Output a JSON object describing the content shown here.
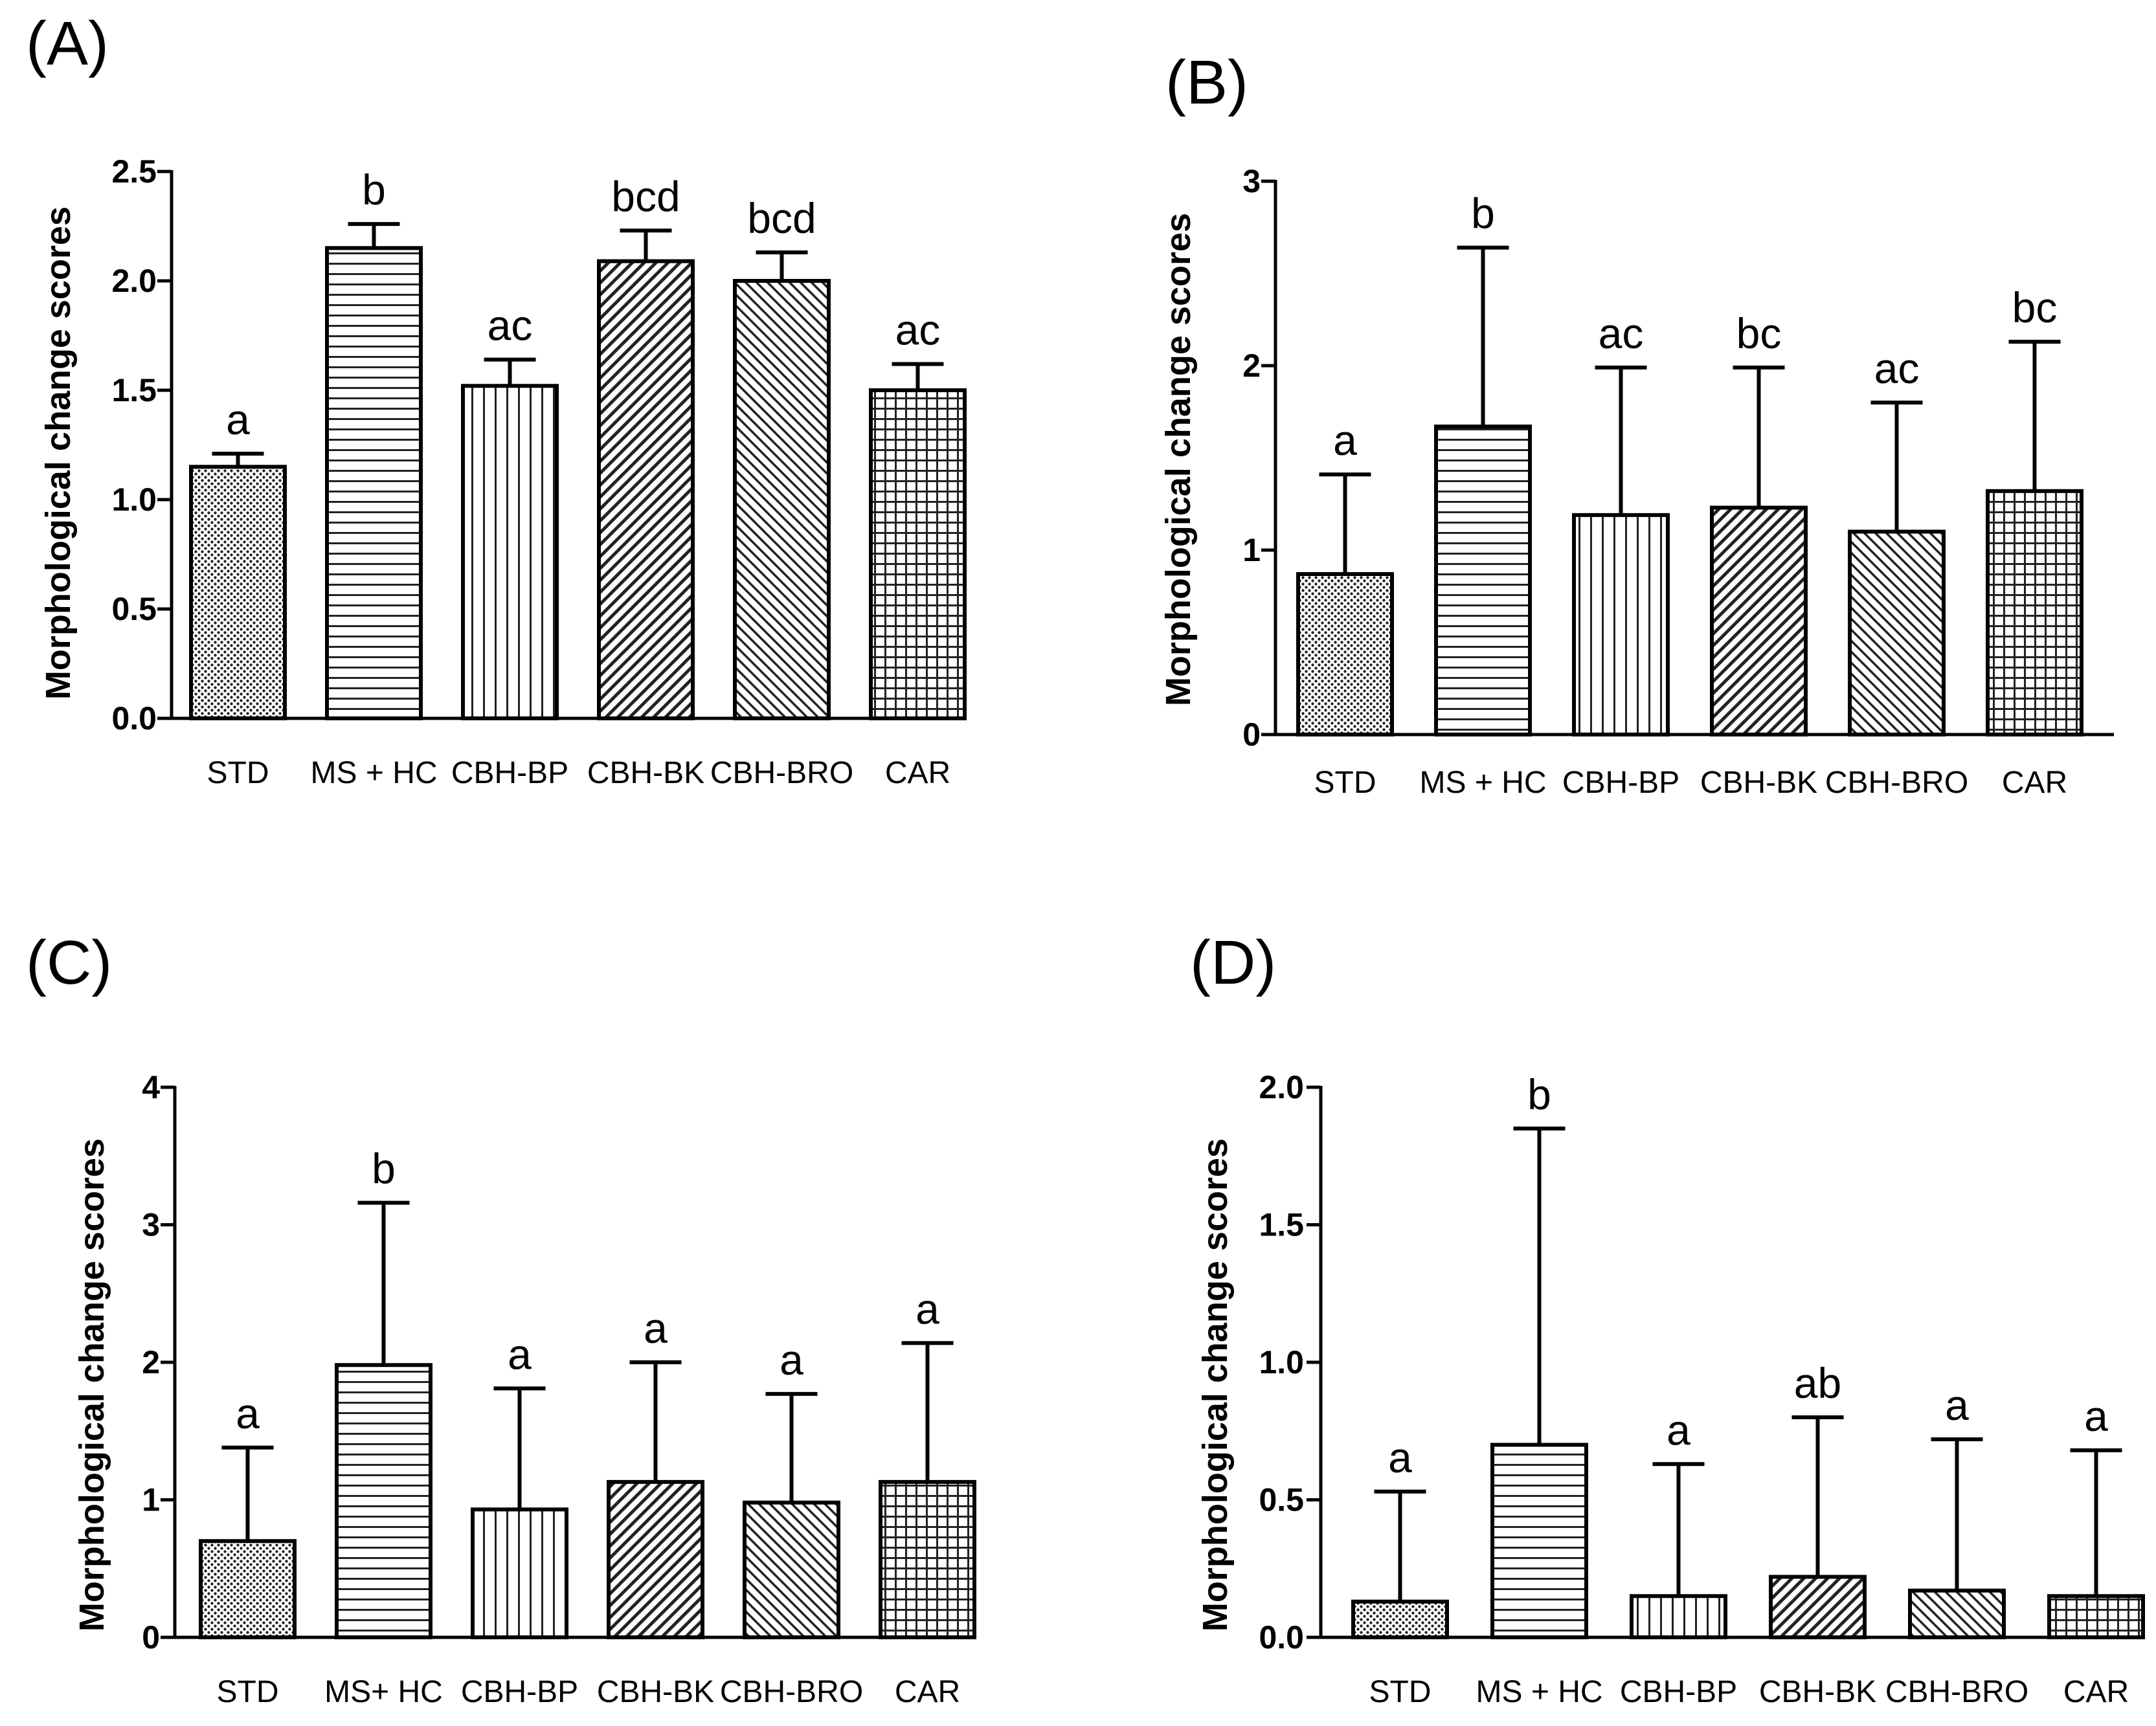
{
  "chart_data": [
    {
      "panel_label": "(A)",
      "type": "bar",
      "ylabel": "Morphological change scores",
      "ylim": [
        0,
        2.5
      ],
      "yticks": [
        "0.0",
        "0.5",
        "1.0",
        "1.5",
        "2.0",
        "2.5"
      ],
      "categories": [
        "STD",
        "MS + HC",
        "CBH-BP",
        "CBH-BK",
        "CBH-BRO",
        "CAR"
      ],
      "values": [
        1.15,
        2.15,
        1.52,
        2.09,
        2.0,
        1.5
      ],
      "error": [
        0.06,
        0.11,
        0.12,
        0.14,
        0.13,
        0.12
      ],
      "letters": [
        "a",
        "b",
        "ac",
        "bcd",
        "bcd",
        "ac"
      ],
      "patterns": [
        "dots",
        "hlines",
        "vlines",
        "diag-right",
        "diag-left",
        "grid"
      ]
    },
    {
      "panel_label": "(B)",
      "type": "bar",
      "ylabel": "Morphological change scores",
      "ylim": [
        0,
        3
      ],
      "yticks": [
        "0",
        "1",
        "2",
        "3"
      ],
      "categories": [
        "STD",
        "MS + HC",
        "CBH-BP",
        "CBH-BK",
        "CBH-BRO",
        "CAR"
      ],
      "values": [
        0.87,
        1.67,
        1.19,
        1.23,
        1.1,
        1.32
      ],
      "error": [
        0.54,
        0.97,
        0.8,
        0.76,
        0.7,
        0.81
      ],
      "letters": [
        "a",
        "b",
        "ac",
        "bc",
        "ac",
        "bc"
      ],
      "patterns": [
        "dots",
        "hlines",
        "vlines",
        "diag-right",
        "diag-left",
        "grid"
      ]
    },
    {
      "panel_label": "(C)",
      "type": "bar",
      "ylabel": "Morphological change scores",
      "ylim": [
        0,
        4
      ],
      "yticks": [
        "0",
        "1",
        "2",
        "3",
        "4"
      ],
      "categories": [
        "STD",
        "MS+ HC",
        "CBH-BP",
        "CBH-BK",
        "CBH-BRO",
        "CAR"
      ],
      "values": [
        0.7,
        1.98,
        0.93,
        1.13,
        0.98,
        1.13
      ],
      "error": [
        0.68,
        1.18,
        0.88,
        0.87,
        0.79,
        1.01
      ],
      "letters": [
        "a",
        "b",
        "a",
        "a",
        "a",
        "a"
      ],
      "patterns": [
        "dots",
        "hlines",
        "vlines",
        "diag-right",
        "diag-left",
        "grid"
      ]
    },
    {
      "panel_label": "(D)",
      "type": "bar",
      "ylabel": "Morphological change scores",
      "ylim": [
        0,
        2.0
      ],
      "yticks": [
        "0.0",
        "0.5",
        "1.0",
        "1.5",
        "2.0"
      ],
      "categories": [
        "STD",
        "MS + HC",
        "CBH-BP",
        "CBH-BK",
        "CBH-BRO",
        "CAR"
      ],
      "values": [
        0.13,
        0.7,
        0.15,
        0.22,
        0.17,
        0.15
      ],
      "error": [
        0.4,
        1.15,
        0.48,
        0.58,
        0.55,
        0.53
      ],
      "letters": [
        "a",
        "b",
        "a",
        "ab",
        "a",
        "a"
      ],
      "patterns": [
        "dots",
        "hlines",
        "vlines",
        "diag-right",
        "diag-left",
        "grid"
      ]
    }
  ]
}
